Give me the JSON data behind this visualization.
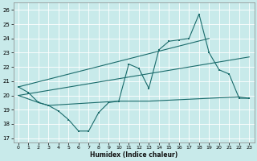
{
  "bg_color": "#c8eaea",
  "grid_color": "#b8d8d8",
  "line_color": "#1a6b6b",
  "xlabel": "Humidex (Indice chaleur)",
  "xlim": [
    -0.5,
    23.5
  ],
  "ylim": [
    16.7,
    26.5
  ],
  "yticks": [
    17,
    18,
    19,
    20,
    21,
    22,
    23,
    24,
    25,
    26
  ],
  "xticks": [
    0,
    1,
    2,
    3,
    4,
    5,
    6,
    7,
    8,
    9,
    10,
    11,
    12,
    13,
    14,
    15,
    16,
    17,
    18,
    19,
    20,
    21,
    22,
    23
  ],
  "line1_x": [
    0,
    1,
    2,
    3,
    4,
    5,
    6,
    7,
    8,
    9,
    10,
    11,
    12,
    13,
    14,
    15,
    16,
    17,
    18,
    19,
    20,
    21,
    22,
    23
  ],
  "line1_y": [
    20.6,
    20.2,
    19.5,
    19.3,
    18.9,
    18.3,
    17.5,
    17.5,
    18.8,
    19.5,
    19.6,
    22.2,
    21.9,
    20.5,
    23.2,
    23.8,
    23.9,
    24.0,
    25.7,
    23.0,
    21.8,
    21.5,
    19.8,
    19.8
  ],
  "line2_x": [
    0,
    2,
    3,
    10,
    13,
    19,
    22,
    23
  ],
  "line2_y": [
    20.0,
    19.5,
    19.3,
    19.6,
    19.6,
    19.8,
    19.9,
    19.8
  ],
  "line3_x": [
    0,
    19
  ],
  "line3_y": [
    20.6,
    24.0
  ],
  "line4_x": [
    0,
    23
  ],
  "line4_y": [
    20.0,
    22.7
  ]
}
